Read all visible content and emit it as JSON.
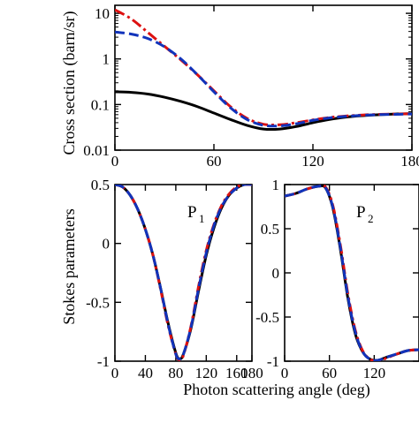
{
  "figure": {
    "ylabel_top": "Cross section (barn/sr)",
    "ylabel_bottom": "Stokes parameters",
    "xlabel": "Photon scattering angle (deg)"
  },
  "colors": {
    "axis": "#000000",
    "series_black": "#000000",
    "series_red": "#dd1111",
    "series_blue": "#1133bb"
  },
  "chart_data": [
    {
      "type": "line",
      "panel": "cross-section",
      "title": "",
      "xlabel": "",
      "ylabel": "Cross section (barn/sr)",
      "xlim": [
        0,
        180
      ],
      "ylim": [
        0.01,
        15
      ],
      "yscale": "log",
      "xticks": [
        0,
        60,
        120,
        180
      ],
      "xtick_labels": [
        "0",
        "60",
        "120",
        "180"
      ],
      "yticks": [
        0.01,
        0.1,
        1,
        10
      ],
      "ytick_labels": [
        "0.01",
        "0.1",
        "1",
        "10"
      ],
      "grid": false,
      "series": [
        {
          "style": "solid",
          "color": "black",
          "x": [
            0,
            10,
            20,
            30,
            40,
            50,
            60,
            70,
            80,
            90,
            100,
            110,
            120,
            130,
            140,
            150,
            160,
            170,
            180
          ],
          "y": [
            0.19,
            0.185,
            0.17,
            0.145,
            0.117,
            0.09,
            0.065,
            0.047,
            0.035,
            0.029,
            0.029,
            0.033,
            0.04,
            0.047,
            0.053,
            0.057,
            0.06,
            0.062,
            0.063
          ]
        },
        {
          "style": "dash-dot",
          "color": "red",
          "x": [
            0,
            10,
            20,
            30,
            40,
            50,
            60,
            70,
            80,
            90,
            100,
            110,
            120,
            130,
            140,
            150,
            160,
            170,
            180
          ],
          "y": [
            12,
            7.5,
            3.8,
            1.9,
            0.95,
            0.45,
            0.2,
            0.09,
            0.05,
            0.037,
            0.036,
            0.04,
            0.046,
            0.052,
            0.056,
            0.059,
            0.061,
            0.062,
            0.063
          ]
        },
        {
          "style": "dashed",
          "color": "blue",
          "x": [
            0,
            10,
            20,
            30,
            40,
            50,
            60,
            70,
            80,
            90,
            100,
            110,
            120,
            130,
            140,
            150,
            160,
            170,
            180
          ],
          "y": [
            3.9,
            3.5,
            2.8,
            1.85,
            1.0,
            0.45,
            0.19,
            0.085,
            0.047,
            0.035,
            0.034,
            0.038,
            0.045,
            0.051,
            0.055,
            0.058,
            0.06,
            0.061,
            0.062
          ]
        }
      ]
    },
    {
      "type": "line",
      "panel": "P1",
      "title": "",
      "panel_label": "P",
      "panel_label_sub": "1",
      "xlabel": "",
      "ylabel": "",
      "xlim": [
        0,
        180
      ],
      "ylim": [
        -1,
        0.5
      ],
      "xticks": [
        0,
        40,
        80,
        120,
        160
      ],
      "xtick_labels": [
        "0",
        "40",
        "80",
        "120",
        "160"
      ],
      "extra_xtick_label": "180",
      "yticks": [
        -1,
        -0.5,
        0,
        0.5
      ],
      "ytick_labels": [
        "-1",
        "-0.5",
        "0",
        "0.5"
      ],
      "grid": false,
      "series": [
        {
          "style": "solid",
          "color": "black",
          "x": [
            0,
            10,
            20,
            30,
            40,
            50,
            60,
            70,
            80,
            85,
            90,
            100,
            110,
            120,
            130,
            140,
            150,
            160,
            170,
            180
          ],
          "y": [
            0.5,
            0.48,
            0.41,
            0.29,
            0.12,
            -0.1,
            -0.38,
            -0.68,
            -0.93,
            -0.98,
            -0.94,
            -0.72,
            -0.4,
            -0.1,
            0.13,
            0.3,
            0.41,
            0.47,
            0.5,
            0.5
          ]
        },
        {
          "style": "dash-dot",
          "color": "red",
          "x": [
            0,
            10,
            20,
            30,
            40,
            50,
            60,
            70,
            80,
            85,
            90,
            100,
            110,
            120,
            130,
            140,
            150,
            160,
            170,
            180
          ],
          "y": [
            0.5,
            0.48,
            0.41,
            0.29,
            0.12,
            -0.1,
            -0.39,
            -0.7,
            -0.94,
            -0.99,
            -0.95,
            -0.7,
            -0.36,
            -0.06,
            0.16,
            0.32,
            0.42,
            0.48,
            0.5,
            0.5
          ]
        },
        {
          "style": "dashed",
          "color": "blue",
          "x": [
            0,
            10,
            20,
            30,
            40,
            50,
            60,
            70,
            80,
            85,
            90,
            100,
            110,
            120,
            130,
            140,
            150,
            160,
            170,
            180
          ],
          "y": [
            0.5,
            0.48,
            0.41,
            0.29,
            0.12,
            -0.1,
            -0.38,
            -0.69,
            -0.94,
            -0.98,
            -0.94,
            -0.71,
            -0.38,
            -0.08,
            0.15,
            0.31,
            0.41,
            0.47,
            0.5,
            0.5
          ]
        }
      ]
    },
    {
      "type": "line",
      "panel": "P2",
      "title": "",
      "panel_label": "P",
      "panel_label_sub": "2",
      "xlabel": "",
      "ylabel": "",
      "xlim": [
        0,
        180
      ],
      "ylim": [
        -1,
        1
      ],
      "xticks": [
        0,
        60,
        120
      ],
      "xtick_labels": [
        "0",
        "60",
        "120"
      ],
      "yticks": [
        -1,
        -0.5,
        0,
        0.5,
        1
      ],
      "ytick_labels": [
        "-1",
        "-0.5",
        "0",
        "0.5",
        "1"
      ],
      "grid": false,
      "series": [
        {
          "style": "solid",
          "color": "black",
          "x": [
            0,
            15,
            30,
            45,
            55,
            65,
            75,
            85,
            95,
            105,
            115,
            125,
            135,
            150,
            165,
            180
          ],
          "y": [
            0.87,
            0.9,
            0.95,
            0.98,
            0.96,
            0.72,
            0.25,
            -0.3,
            -0.7,
            -0.9,
            -0.98,
            -0.99,
            -0.96,
            -0.92,
            -0.88,
            -0.87
          ]
        },
        {
          "style": "dash-dot",
          "color": "red",
          "x": [
            0,
            15,
            30,
            45,
            55,
            65,
            75,
            85,
            95,
            105,
            115,
            125,
            135,
            150,
            165,
            180
          ],
          "y": [
            0.87,
            0.9,
            0.95,
            0.98,
            0.97,
            0.75,
            0.3,
            -0.25,
            -0.66,
            -0.89,
            -0.98,
            -1.0,
            -0.97,
            -0.92,
            -0.88,
            -0.87
          ]
        },
        {
          "style": "dashed",
          "color": "blue",
          "x": [
            0,
            15,
            30,
            45,
            55,
            65,
            75,
            85,
            95,
            105,
            115,
            125,
            135,
            150,
            165,
            180
          ],
          "y": [
            0.87,
            0.9,
            0.95,
            0.98,
            0.96,
            0.73,
            0.27,
            -0.28,
            -0.68,
            -0.9,
            -0.98,
            -0.99,
            -0.96,
            -0.92,
            -0.88,
            -0.87
          ]
        }
      ]
    }
  ]
}
